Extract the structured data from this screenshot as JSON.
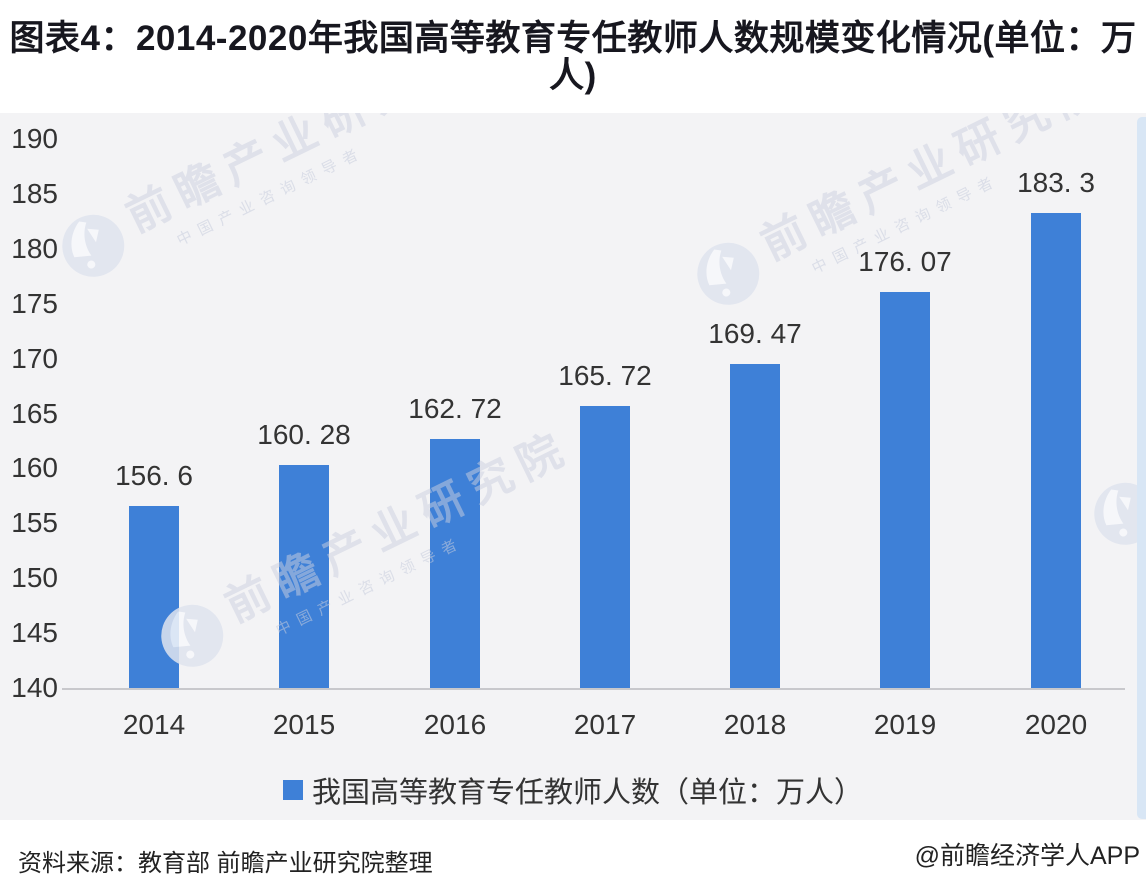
{
  "title": {
    "line1": "图表4：2014-2020年我国高等教育专任教师人数规模变化情况(单位：万",
    "line2": "人)"
  },
  "chart_data": {
    "type": "bar",
    "title": "图表4：2014-2020年我国高等教育专任教师人数规模变化情况(单位：万人)",
    "categories": [
      "2014",
      "2015",
      "2016",
      "2017",
      "2018",
      "2019",
      "2020"
    ],
    "values": [
      156.6,
      160.28,
      162.72,
      165.72,
      169.47,
      176.07,
      183.3
    ],
    "value_labels": [
      "156. 6",
      "160. 28",
      "162. 72",
      "165. 72",
      "169. 47",
      "176. 07",
      "183. 3"
    ],
    "series_name": "我国高等教育专任教师人数（单位：万人）",
    "xlabel": "",
    "ylabel": "",
    "ylim": [
      140,
      190
    ],
    "ytick_step": 5,
    "yticks": [
      140,
      145,
      150,
      155,
      160,
      165,
      170,
      175,
      180,
      185,
      190
    ],
    "grid": false,
    "legend_position": "bottom",
    "bar_color": "#3e80d7"
  },
  "legend": {
    "label": "我国高等教育专任教师人数（单位：万人）"
  },
  "footer": {
    "source": "资料来源：教育部 前瞻产业研究院整理",
    "brand": "@前瞻经济学人APP"
  },
  "watermark": {
    "text": "前瞻产业研究院",
    "subtext": "中国产业咨询领导者"
  },
  "colors": {
    "bar": "#3e80d7",
    "chart_background": "#f3f3f5",
    "page_background": "#ffffff",
    "right_stripe": "#d8e6f5",
    "title_text": "#17171f",
    "axis_text": "#333333",
    "footer_text": "#222222",
    "axis_line": "#c8c8cc"
  }
}
